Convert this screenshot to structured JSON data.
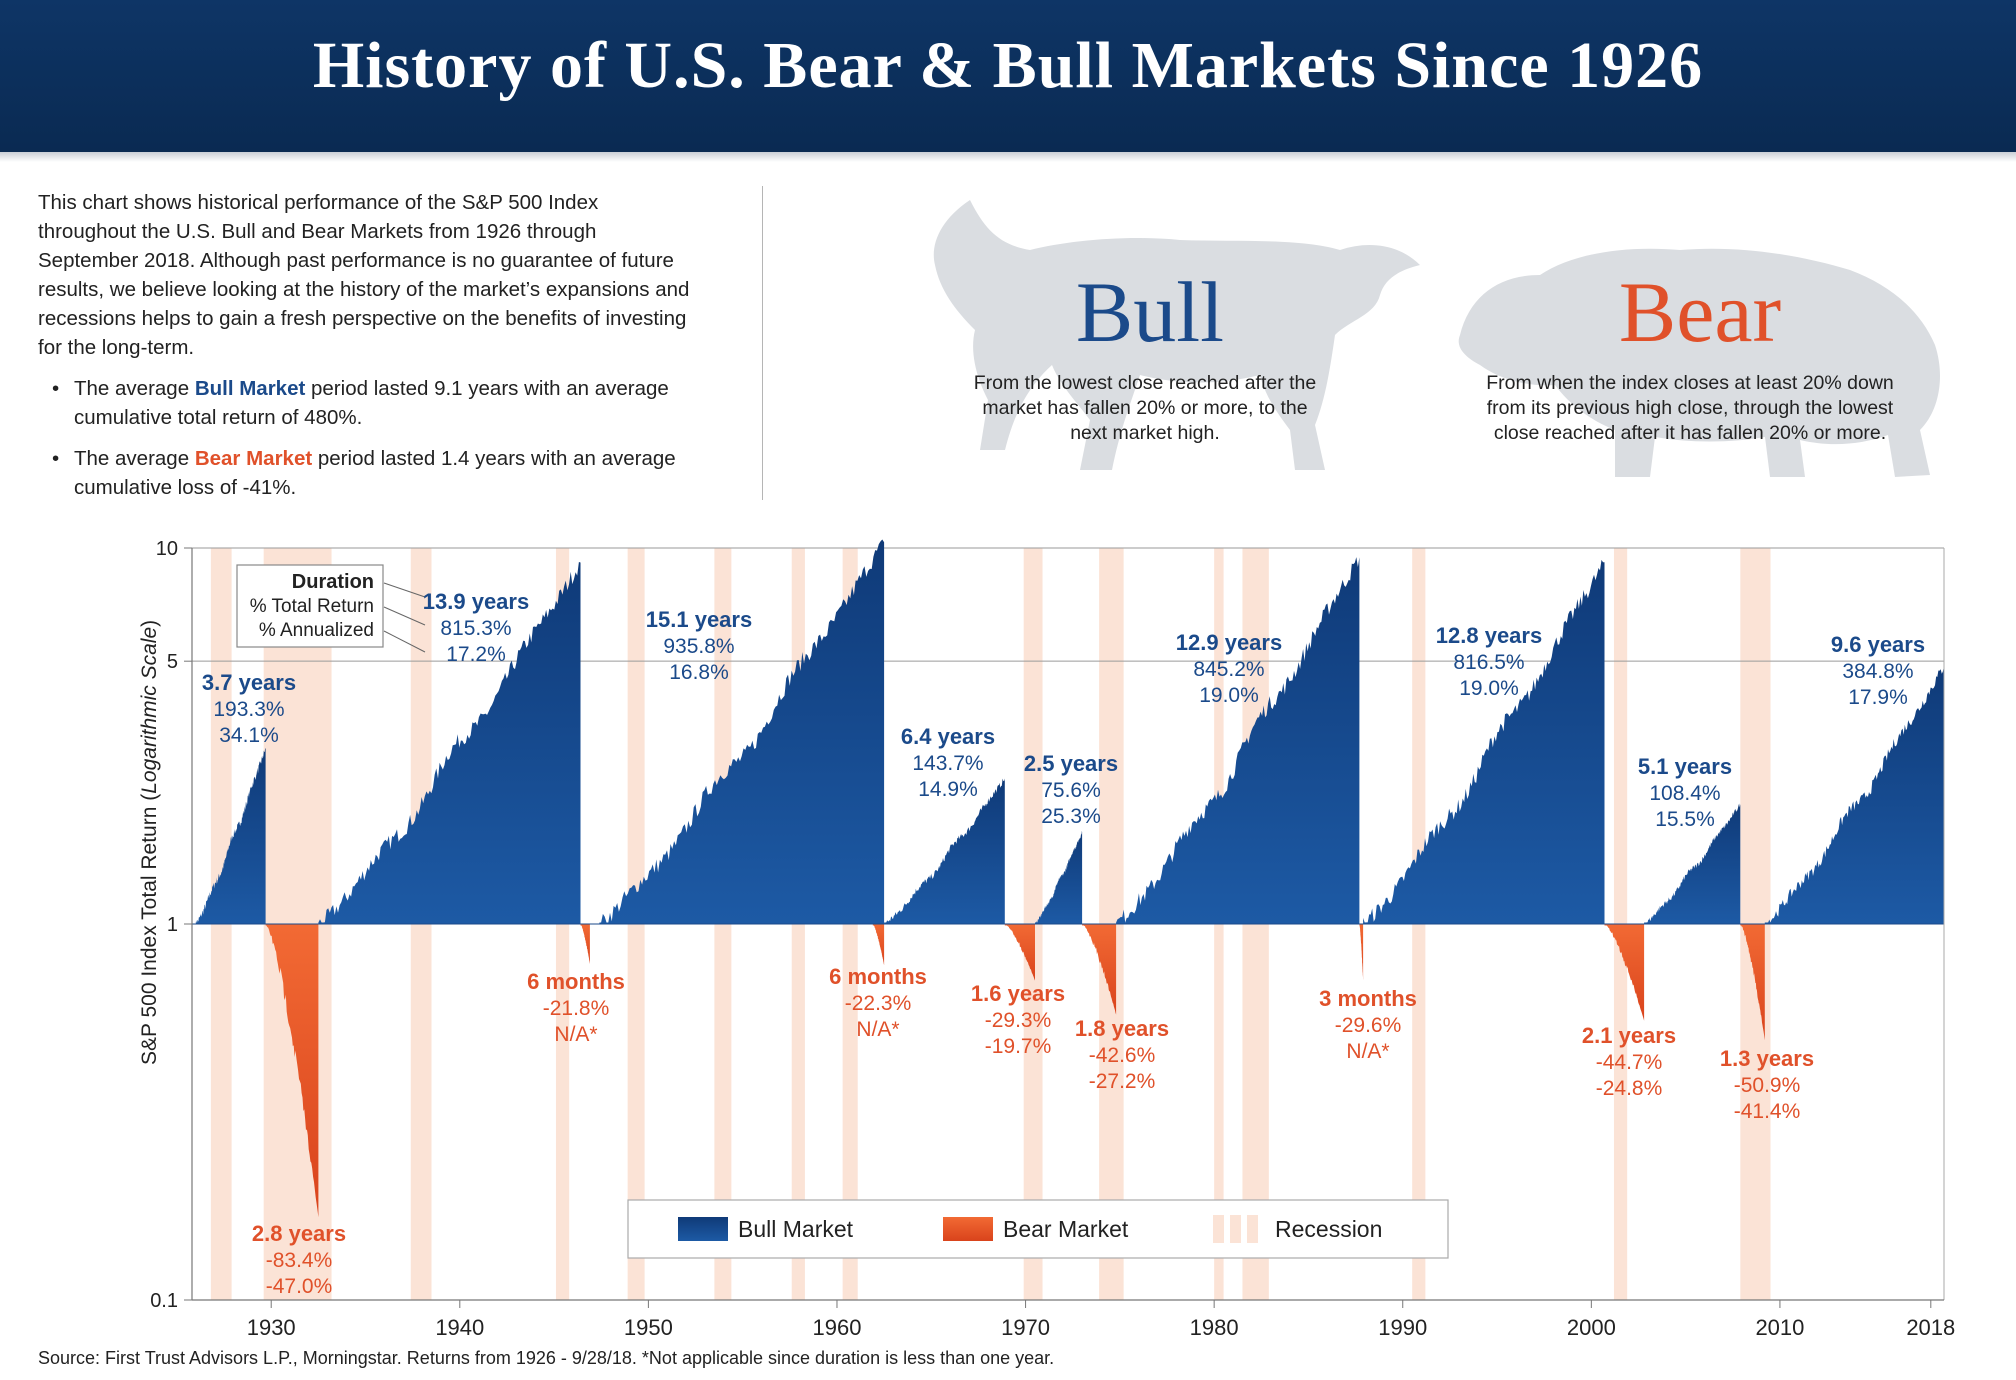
{
  "header": {
    "title": "History of U.S. Bear & Bull Markets Since 1926"
  },
  "intro": {
    "paragraph": "This chart shows historical performance of the S&P 500 Index throughout the U.S. Bull and Bear Markets from 1926 through September 2018. Although past performance is no guarantee of future results, we believe looking at the history of the market’s expansions and recessions helps to gain a fresh perspective on the benefits of investing for the long-term.",
    "bull_prefix": "The average ",
    "bull_word": "Bull Market",
    "bull_suffix": " period lasted 9.1 years with an average cumulative total return of 480%.",
    "bear_prefix": "The average ",
    "bear_word": "Bear Market",
    "bear_suffix": " period lasted 1.4 years with an average cumulative loss of -41%."
  },
  "definitions": {
    "bull_title": "Bull",
    "bull_text": "From the lowest close reached after the market has fallen 20% or more, to the next market high.",
    "bear_title": "Bear",
    "bear_text": "From when the index closes at least 20% down from its previous high close, through the lowest close reached after it has fallen 20% or more."
  },
  "colors": {
    "header_bg": "#0a2a52",
    "bull": "#1b4a8a",
    "bear": "#e8552a",
    "recession": "#fbe3d6",
    "bull_text": "#1b4a8a",
    "bear_text": "#e0512a"
  },
  "icons": {
    "bull": "bull-silhouette-icon",
    "bear": "bear-silhouette-icon"
  },
  "chart_data": {
    "type": "area",
    "ylabel_prefix": "S&P 500 Index Total Return (",
    "ylabel_italic": "Logarithmic Scale",
    "ylabel_suffix": ")",
    "y_scale": "log",
    "ylim": [
      0.1,
      10
    ],
    "y_ticks": [
      10,
      5,
      1,
      0.1
    ],
    "y_tick_labels": [
      "10",
      "5",
      "1",
      "0.1"
    ],
    "xlim": [
      1925.8,
      2018.7
    ],
    "x_ticks": [
      1930,
      1940,
      1950,
      1960,
      1970,
      1980,
      1990,
      2000,
      2010,
      2018
    ],
    "x_tick_labels": [
      "1930",
      "1940",
      "1950",
      "1960",
      "1970",
      "1980",
      "1990",
      "2000",
      "2010",
      "2018"
    ],
    "grid_lines": [
      10,
      5
    ],
    "legend": {
      "position": "bottom-center",
      "items": [
        "Bull Market",
        "Bear Market",
        "Recession"
      ]
    },
    "key_box": [
      "Duration",
      "% Total Return",
      "% Annualized"
    ],
    "recessions": [
      [
        1926.8,
        1927.9
      ],
      [
        1929.6,
        1933.2
      ],
      [
        1937.4,
        1938.5
      ],
      [
        1945.1,
        1945.8
      ],
      [
        1948.9,
        1949.8
      ],
      [
        1953.5,
        1954.4
      ],
      [
        1957.6,
        1958.3
      ],
      [
        1960.3,
        1961.1
      ],
      [
        1969.9,
        1970.9
      ],
      [
        1973.9,
        1975.2
      ],
      [
        1980.0,
        1980.5
      ],
      [
        1981.5,
        1982.9
      ],
      [
        1990.5,
        1991.2
      ],
      [
        2001.2,
        2001.9
      ],
      [
        2007.9,
        2009.5
      ]
    ],
    "bull_markets": [
      {
        "start": 1926.0,
        "end": 1929.7,
        "peak": 2.933,
        "duration": "3.7 years",
        "total_return": "193.3%",
        "annualized": "34.1%"
      },
      {
        "start": 1932.5,
        "end": 1946.4,
        "peak": 9.153,
        "duration": "13.9 years",
        "total_return": "815.3%",
        "annualized": "17.2%"
      },
      {
        "start": 1947.4,
        "end": 1962.5,
        "peak": 10.358,
        "duration": "15.1 years",
        "total_return": "935.8%",
        "annualized": "16.8%"
      },
      {
        "start": 1962.5,
        "end": 1968.9,
        "peak": 2.437,
        "duration": "6.4 years",
        "total_return": "143.7%",
        "annualized": "14.9%"
      },
      {
        "start": 1970.5,
        "end": 1973.0,
        "peak": 1.756,
        "duration": "2.5 years",
        "total_return": "75.6%",
        "annualized": "25.3%"
      },
      {
        "start": 1974.8,
        "end": 1987.7,
        "peak": 9.452,
        "duration": "12.9 years",
        "total_return": "845.2%",
        "annualized": "19.0%"
      },
      {
        "start": 1987.9,
        "end": 2000.7,
        "peak": 9.165,
        "duration": "12.8 years",
        "total_return": "816.5%",
        "annualized": "19.0%"
      },
      {
        "start": 2002.8,
        "end": 2007.9,
        "peak": 2.084,
        "duration": "5.1 years",
        "total_return": "108.4%",
        "annualized": "15.5%"
      },
      {
        "start": 2009.2,
        "end": 2018.7,
        "peak": 4.848,
        "duration": "9.6 years",
        "total_return": "384.8%",
        "annualized": "17.9%"
      }
    ],
    "bear_markets": [
      {
        "start": 1929.7,
        "end": 1932.5,
        "trough": 0.166,
        "duration": "2.8 years",
        "total_return": "-83.4%",
        "annualized": "-47.0%"
      },
      {
        "start": 1946.4,
        "end": 1946.9,
        "trough": 0.782,
        "duration": "6 months",
        "total_return": "-21.8%",
        "annualized": "N/A*"
      },
      {
        "start": 1961.9,
        "end": 1962.5,
        "trough": 0.777,
        "duration": "6 months",
        "total_return": "-22.3%",
        "annualized": "N/A*"
      },
      {
        "start": 1968.9,
        "end": 1970.5,
        "trough": 0.707,
        "duration": "1.6 years",
        "total_return": "-29.3%",
        "annualized": "-19.7%"
      },
      {
        "start": 1973.0,
        "end": 1974.8,
        "trough": 0.574,
        "duration": "1.8 years",
        "total_return": "-42.6%",
        "annualized": "-27.2%"
      },
      {
        "start": 1987.7,
        "end": 1987.9,
        "trough": 0.704,
        "duration": "3 months",
        "total_return": "-29.6%",
        "annualized": "N/A*"
      },
      {
        "start": 2000.7,
        "end": 2002.8,
        "trough": 0.553,
        "duration": "2.1 years",
        "total_return": "-44.7%",
        "annualized": "-24.8%"
      },
      {
        "start": 2007.9,
        "end": 2009.2,
        "trough": 0.491,
        "duration": "1.3 years",
        "total_return": "-50.9%",
        "annualized": "-41.4%"
      }
    ]
  },
  "source": "Source: First Trust Advisors L.P., Morningstar. Returns from 1926 - 9/28/18.  *Not applicable since duration is less than one year."
}
